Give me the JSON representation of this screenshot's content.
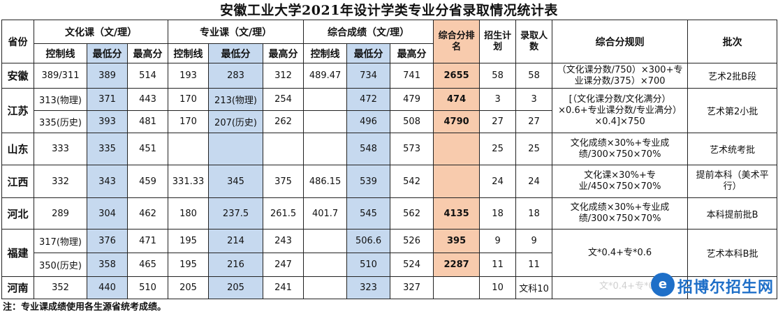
{
  "title": "安徽工业大学2021年设计学类专业分省录取情况统计表",
  "headers": {
    "province": "省份",
    "culture": "文化课（文/理）",
    "major": "专业课（文/理）",
    "composite": "综合成绩（文/理）",
    "rank": "综合分排名",
    "plan": "招生计划",
    "admitted": "录取人数",
    "rule": "综合分规则",
    "batch": "批次",
    "sub": {
      "control": "控制线",
      "min": "最低分",
      "max": "最高分"
    }
  },
  "rows": {
    "anhui": {
      "province": "安徽",
      "c_ctrl": "389/311",
      "c_min": "389",
      "c_max": "514",
      "m_ctrl": "193",
      "m_min": "283",
      "m_max": "312",
      "s_ctrl": "489.47",
      "s_min": "734",
      "s_max": "741",
      "rank": "2655",
      "plan": "58",
      "admitted": "58",
      "rule": "（文化课分数/750）×300+专业课分数/375）×700",
      "batch": "艺术2批B段"
    },
    "jiangsu": {
      "province": "江苏",
      "rule": "[（文化课分数/文化满分）×0.6+专业课分数/专业满分）×0.4]×750",
      "batch": "艺术第2小批",
      "a": {
        "c_ctrl": "313(物理)",
        "c_min": "371",
        "c_max": "443",
        "m_ctrl": "170",
        "m_min": "213(物理)",
        "m_max": "254",
        "s_min": "472",
        "s_max": "479",
        "rank": "474",
        "plan": "3",
        "admitted": "3"
      },
      "b": {
        "c_ctrl": "335(历史)",
        "c_min": "393",
        "c_max": "481",
        "m_ctrl": "170",
        "m_min": "207(历史)",
        "m_max": "262",
        "s_min": "496",
        "s_max": "508",
        "rank": "4790",
        "plan": "27",
        "admitted": "27"
      }
    },
    "shandong": {
      "province": "山东",
      "c_ctrl": "333",
      "c_min": "335",
      "c_max": "451",
      "s_min": "548",
      "s_max": "573",
      "plan": "25",
      "admitted": "25",
      "rule": "文化成绩×30%+专业成绩/300×750×70%",
      "batch": "艺术统考批"
    },
    "jiangxi": {
      "province": "江西",
      "c_ctrl": "332",
      "c_min": "343",
      "c_max": "459",
      "m_ctrl": "331.33",
      "m_min": "345",
      "m_max": "375",
      "s_ctrl": "486.15",
      "s_min": "539",
      "s_max": "542",
      "plan": "24",
      "admitted": "24",
      "rule": "文化课×30%+专业/450×750×70%",
      "batch": "提前本科（美术平行）"
    },
    "hebei": {
      "province": "河北",
      "c_ctrl": "289",
      "c_min": "304",
      "c_max": "462",
      "m_ctrl": "180",
      "m_min": "237.5",
      "m_max": "261.5",
      "s_ctrl": "401.7",
      "s_min": "545",
      "s_max": "562",
      "rank": "4135",
      "plan": "18",
      "admitted": "18",
      "rule": "文化成绩×30%+专业成绩/300×750×70%",
      "batch": "本科提前批B"
    },
    "fujian": {
      "province": "福建",
      "rule": "文*0.4+专*0.6",
      "batch": "艺术本科B批",
      "a": {
        "c_ctrl": "317(物理)",
        "c_min": "376",
        "c_max": "471",
        "m_ctrl": "195",
        "m_min": "214",
        "m_max": "243",
        "s_min": "506.6",
        "s_max": "526",
        "rank": "395",
        "plan": "9",
        "admitted": "9"
      },
      "b": {
        "c_ctrl": "350(历史)",
        "c_min": "358",
        "c_max": "465",
        "m_ctrl": "195",
        "m_min": "216",
        "m_max": "247",
        "s_min": "510",
        "s_max": "524",
        "rank": "2287",
        "plan": "11",
        "admitted": "11"
      }
    },
    "henan": {
      "province": "河南",
      "c_ctrl": "352",
      "c_min": "440",
      "c_max": "510",
      "m_ctrl": "205",
      "m_min": "205",
      "m_max": "241",
      "s_min": "323",
      "s_max": "327",
      "plan": "10",
      "admitted": "文科10"
    }
  },
  "note": "注：专业课成绩使用各生源省统考成绩。",
  "watermark": {
    "faint": "文*0.4+专*0.6",
    "logo_char": "e",
    "text": "招博尔招生网"
  },
  "colors": {
    "blue": "#c6d9ef",
    "orange": "#f8cbad"
  }
}
